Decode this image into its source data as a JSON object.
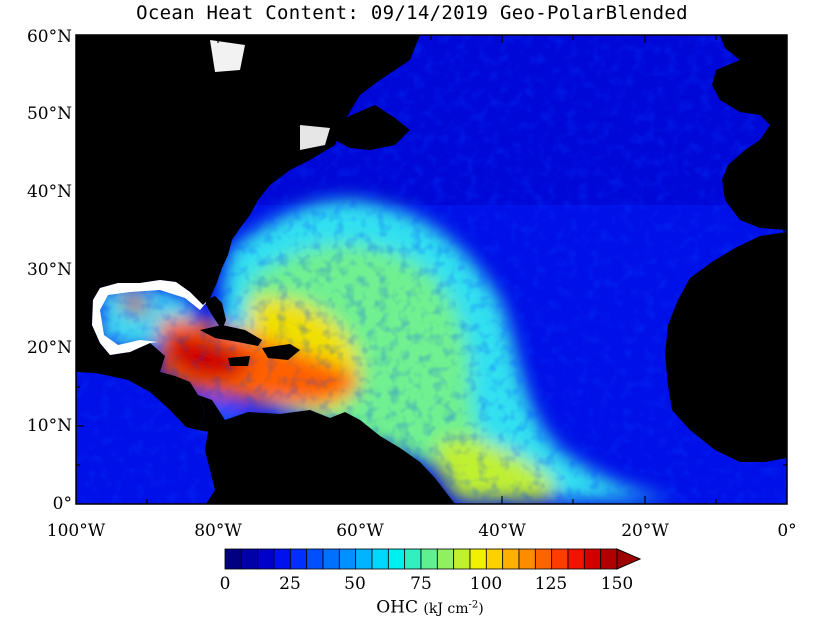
{
  "title": "Ocean Heat Content: 09/14/2019 Geo-PolarBlended",
  "map": {
    "land_color": "#000000",
    "background_color": "#ffffff",
    "lat_labels": [
      "60°N",
      "50°N",
      "40°N",
      "30°N",
      "20°N",
      "10°N",
      "0°"
    ],
    "lon_labels": [
      "100°W",
      "80°W",
      "60°W",
      "40°W",
      "20°W",
      "0°"
    ]
  },
  "colorbar": {
    "labels": [
      "0",
      "25",
      "50",
      "75",
      "100",
      "125",
      "150"
    ],
    "title_text": "OHC",
    "unit_text": "(kJ cm",
    "unit_exp": "-2",
    "unit_close": ")",
    "colors": [
      "#000080",
      "#0000a8",
      "#0000cc",
      "#0010ee",
      "#0030ff",
      "#0050ff",
      "#0070ff",
      "#0090ff",
      "#00b4ff",
      "#00d8ff",
      "#00f0f0",
      "#30f0c0",
      "#60f090",
      "#90f060",
      "#c0f030",
      "#f0f000",
      "#ffd000",
      "#ffb000",
      "#ff8c00",
      "#ff6400",
      "#ff3c00",
      "#f01400",
      "#d00000",
      "#b00000"
    ],
    "extend_color": "#a00000"
  }
}
